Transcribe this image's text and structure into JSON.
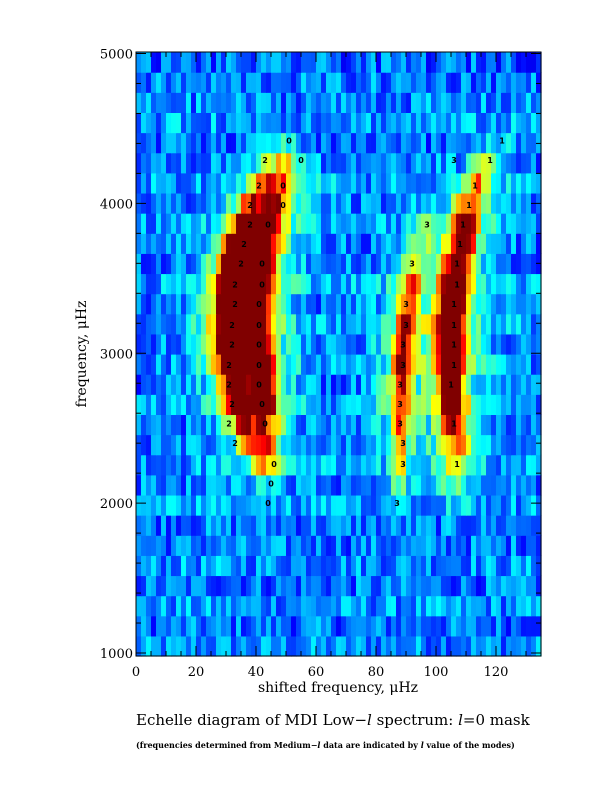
{
  "chart_data": {
    "type": "heatmap",
    "title": "",
    "xlabel": "shifted frequency, μHz",
    "ylabel": "frequency, μHz",
    "xlim": [
      0,
      135
    ],
    "ylim": [
      980,
      5010
    ],
    "xticks": [
      0,
      20,
      40,
      60,
      80,
      100,
      120
    ],
    "yticks": [
      1000,
      2000,
      3000,
      4000,
      5000
    ],
    "grid": false,
    "row_spacing_uHz": 135,
    "colormap": "jet",
    "ridges": [
      {
        "name": "l=2",
        "x": [
          44,
          36,
          33,
          31,
          31,
          31,
          32,
          33,
          34,
          37,
          40,
          43,
          47
        ],
        "y": [
          2200,
          2500,
          2800,
          3000,
          3200,
          3400,
          3550,
          3650,
          3750,
          3900,
          4050,
          4200,
          4350
        ]
      },
      {
        "name": "l=0",
        "x": [
          44,
          43,
          42,
          41,
          40,
          40,
          41,
          42,
          43,
          45,
          47,
          49,
          51
        ],
        "y": [
          2200,
          2500,
          2800,
          3000,
          3200,
          3400,
          3550,
          3650,
          3750,
          3900,
          4050,
          4200,
          4350
        ]
      },
      {
        "name": "l=3",
        "x": [
          88,
          88,
          88,
          89,
          90,
          91,
          93,
          97
        ],
        "y": [
          2050,
          2400,
          2800,
          3000,
          3200,
          3400,
          3600,
          3900
        ]
      },
      {
        "name": "l=1",
        "x": [
          107,
          106,
          105,
          105,
          105,
          106,
          107,
          109,
          111,
          115,
          120
        ],
        "y": [
          2050,
          2400,
          2800,
          3000,
          3200,
          3400,
          3600,
          3800,
          4000,
          4200,
          4400
        ]
      }
    ],
    "mode_labels": [
      {
        "text": "0",
        "x": 44,
        "y": 2000
      },
      {
        "text": "0",
        "x": 45,
        "y": 2130
      },
      {
        "text": "0",
        "x": 46,
        "y": 2260
      },
      {
        "text": "0",
        "x": 43,
        "y": 2530
      },
      {
        "text": "0",
        "x": 42,
        "y": 2660
      },
      {
        "text": "0",
        "x": 41,
        "y": 2790
      },
      {
        "text": "0",
        "x": 41,
        "y": 2920
      },
      {
        "text": "0",
        "x": 41,
        "y": 3060
      },
      {
        "text": "0",
        "x": 41,
        "y": 3190
      },
      {
        "text": "0",
        "x": 41,
        "y": 3330
      },
      {
        "text": "0",
        "x": 42,
        "y": 3460
      },
      {
        "text": "0",
        "x": 42,
        "y": 3600
      },
      {
        "text": "0",
        "x": 44,
        "y": 3860
      },
      {
        "text": "0",
        "x": 49,
        "y": 3990
      },
      {
        "text": "0",
        "x": 49,
        "y": 4120
      },
      {
        "text": "0",
        "x": 55,
        "y": 4290
      },
      {
        "text": "0",
        "x": 51,
        "y": 4420
      },
      {
        "text": "2",
        "x": 33,
        "y": 2400
      },
      {
        "text": "2",
        "x": 31,
        "y": 2530
      },
      {
        "text": "2",
        "x": 32,
        "y": 2660
      },
      {
        "text": "2",
        "x": 31,
        "y": 2790
      },
      {
        "text": "2",
        "x": 31,
        "y": 2920
      },
      {
        "text": "2",
        "x": 32,
        "y": 3060
      },
      {
        "text": "2",
        "x": 32,
        "y": 3190
      },
      {
        "text": "2",
        "x": 33,
        "y": 3330
      },
      {
        "text": "2",
        "x": 33,
        "y": 3460
      },
      {
        "text": "2",
        "x": 35,
        "y": 3600
      },
      {
        "text": "2",
        "x": 36,
        "y": 3730
      },
      {
        "text": "2",
        "x": 38,
        "y": 3860
      },
      {
        "text": "2",
        "x": 38,
        "y": 3990
      },
      {
        "text": "2",
        "x": 41,
        "y": 4120
      },
      {
        "text": "2",
        "x": 43,
        "y": 4290
      },
      {
        "text": "3",
        "x": 87,
        "y": 2000
      },
      {
        "text": "3",
        "x": 89,
        "y": 2260
      },
      {
        "text": "3",
        "x": 89,
        "y": 2400
      },
      {
        "text": "3",
        "x": 88,
        "y": 2530
      },
      {
        "text": "3",
        "x": 88,
        "y": 2660
      },
      {
        "text": "3",
        "x": 88,
        "y": 2790
      },
      {
        "text": "3",
        "x": 89,
        "y": 2920
      },
      {
        "text": "3",
        "x": 89,
        "y": 3060
      },
      {
        "text": "3",
        "x": 90,
        "y": 3190
      },
      {
        "text": "3",
        "x": 90,
        "y": 3330
      },
      {
        "text": "3",
        "x": 92,
        "y": 3600
      },
      {
        "text": "3",
        "x": 97,
        "y": 3860
      },
      {
        "text": "3",
        "x": 106,
        "y": 4290
      },
      {
        "text": "1",
        "x": 107,
        "y": 2260
      },
      {
        "text": "1",
        "x": 106,
        "y": 2530
      },
      {
        "text": "1",
        "x": 105,
        "y": 2790
      },
      {
        "text": "1",
        "x": 106,
        "y": 2920
      },
      {
        "text": "1",
        "x": 106,
        "y": 3060
      },
      {
        "text": "1",
        "x": 106,
        "y": 3190
      },
      {
        "text": "1",
        "x": 106,
        "y": 3330
      },
      {
        "text": "1",
        "x": 107,
        "y": 3460
      },
      {
        "text": "1",
        "x": 107,
        "y": 3600
      },
      {
        "text": "1",
        "x": 108,
        "y": 3730
      },
      {
        "text": "1",
        "x": 109,
        "y": 3860
      },
      {
        "text": "1",
        "x": 111,
        "y": 3990
      },
      {
        "text": "1",
        "x": 113,
        "y": 4120
      },
      {
        "text": "1",
        "x": 118,
        "y": 4290
      },
      {
        "text": "1",
        "x": 122,
        "y": 4420
      }
    ]
  },
  "caption": {
    "p1": "Echelle diagram of MDI Low−",
    "p2": "l",
    "p3": " spectrum: ",
    "p4": "l",
    "p5": "=0 mask"
  },
  "note": {
    "p1": "(frequencies determined from Medium−",
    "p2": "l",
    "p3": " data are indicated by  ",
    "p4": "l",
    "p5": " value of the modes)"
  }
}
